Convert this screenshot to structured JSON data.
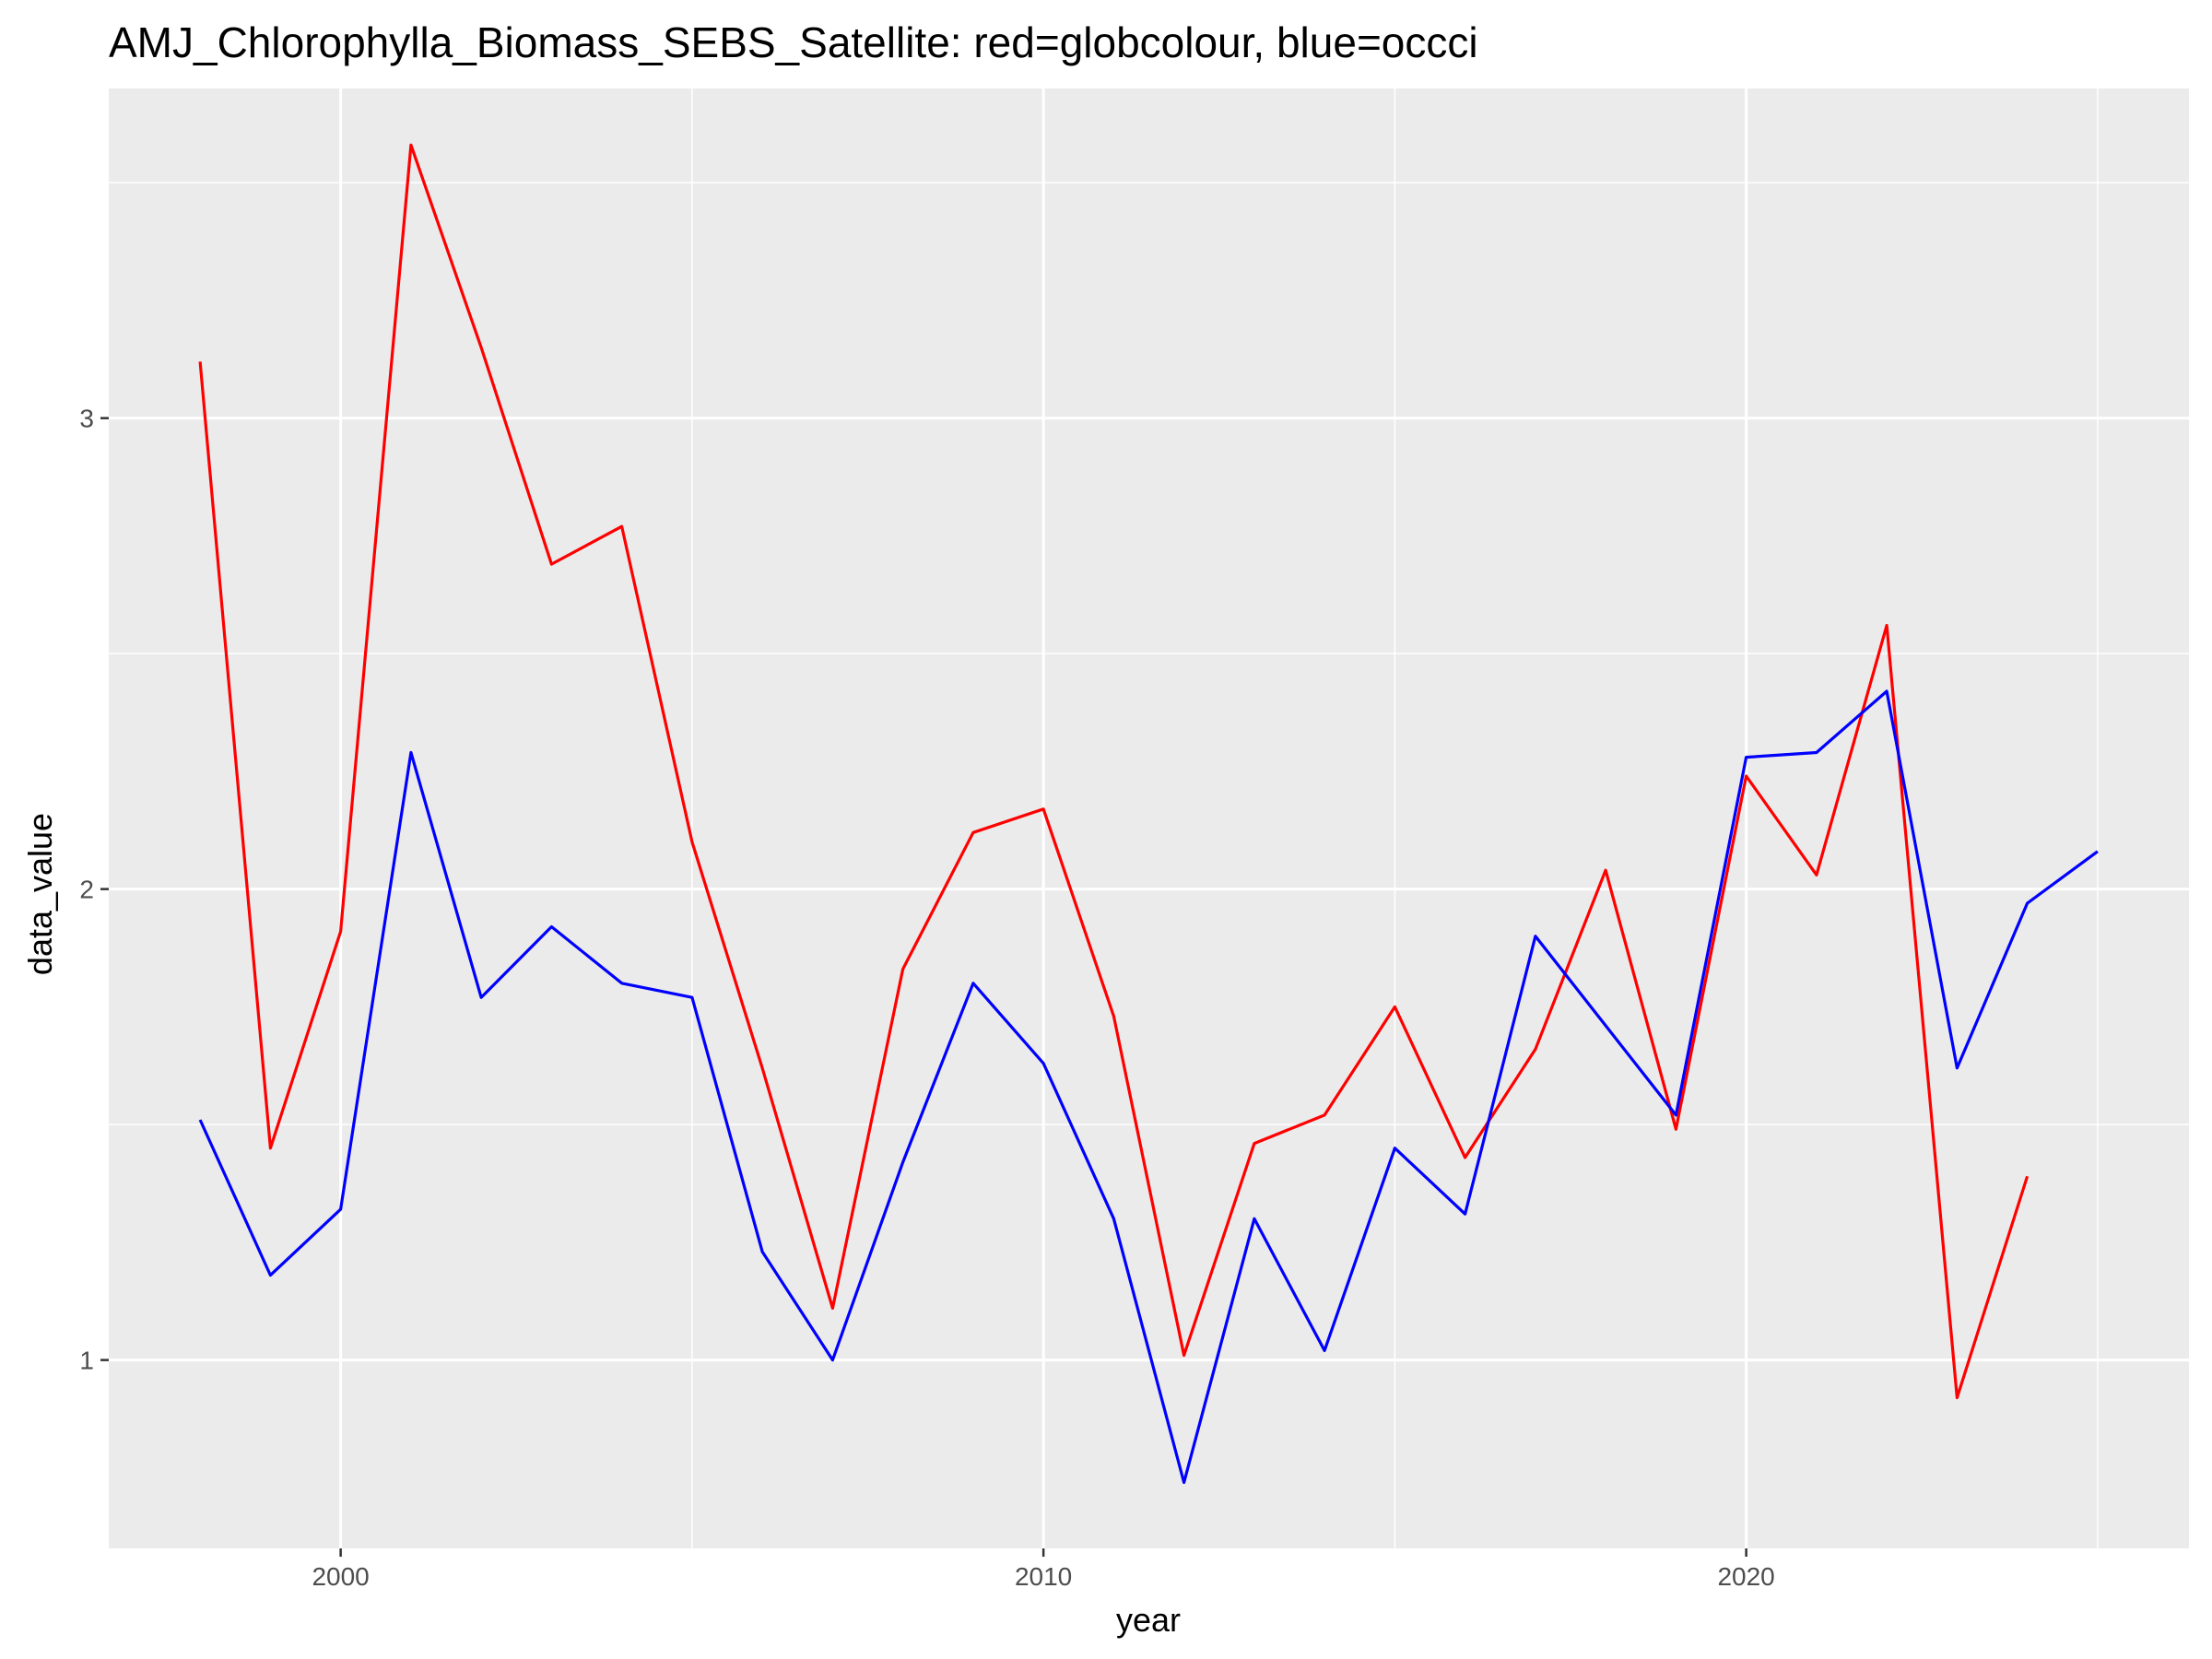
{
  "chart_data": {
    "type": "line",
    "title": "AMJ_Chlorophylla_Biomass_SEBS_Satellite: red=globcolour, blue=occci",
    "xlabel": "year",
    "ylabel": "data_value",
    "xlim": [
      1996.7,
      2026.3
    ],
    "ylim": [
      0.6,
      3.7
    ],
    "x_ticks": [
      2000,
      2010,
      2020
    ],
    "y_ticks": [
      1,
      2,
      3
    ],
    "grid": true,
    "legend": "none",
    "background": "#ebebeb",
    "series": [
      {
        "color": "#ff0000",
        "x": [
          1998,
          1999,
          2000,
          2001,
          2002,
          2003,
          2004,
          2005,
          2006,
          2007,
          2008,
          2009,
          2010,
          2011,
          2012,
          2013,
          2014,
          2015,
          2016,
          2017,
          2018,
          2019,
          2020,
          2021,
          2022,
          2023,
          2024
        ],
        "y": [
          3.12,
          1.45,
          1.91,
          3.58,
          3.15,
          2.69,
          2.77,
          2.1,
          1.62,
          1.11,
          1.83,
          2.12,
          2.17,
          1.73,
          1.01,
          1.46,
          1.52,
          1.75,
          1.43,
          1.66,
          2.04,
          1.49,
          2.24,
          2.03,
          2.56,
          0.92,
          1.39
        ]
      },
      {
        "color": "#0000ff",
        "x": [
          1998,
          1999,
          2000,
          2001,
          2002,
          2003,
          2004,
          2005,
          2006,
          2007,
          2008,
          2009,
          2010,
          2011,
          2012,
          2013,
          2014,
          2015,
          2016,
          2017,
          2018,
          2019,
          2020,
          2021,
          2022,
          2023,
          2024,
          2025
        ],
        "y": [
          1.51,
          1.18,
          1.32,
          2.29,
          1.77,
          1.92,
          1.8,
          1.77,
          1.23,
          1.0,
          1.42,
          1.8,
          1.63,
          1.3,
          0.74,
          1.3,
          1.02,
          1.45,
          1.31,
          1.9,
          1.71,
          1.52,
          2.28,
          2.29,
          2.42,
          1.62,
          1.97,
          2.08
        ]
      }
    ]
  }
}
